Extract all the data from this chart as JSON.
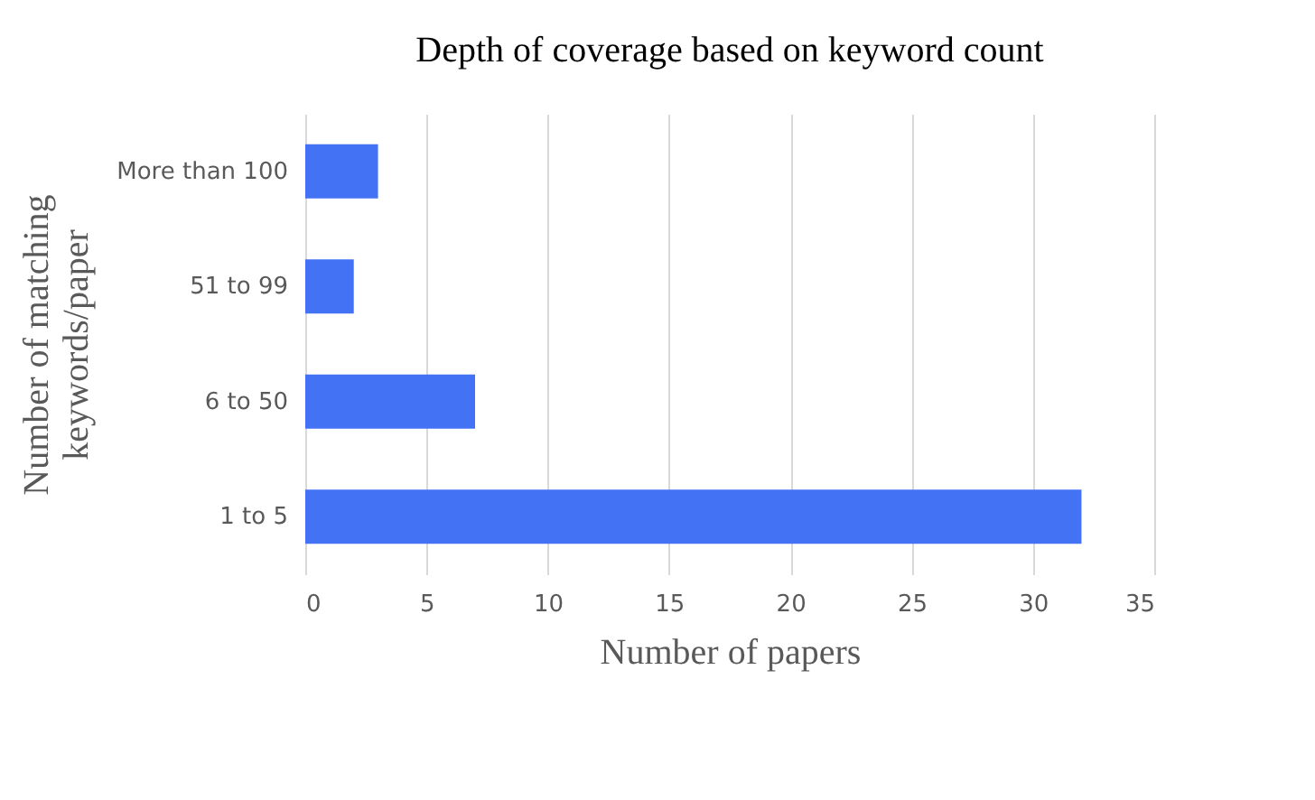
{
  "chart_data": {
    "type": "bar",
    "orientation": "horizontal",
    "title": "Depth of coverage based on keyword count",
    "xlabel": "Number of papers",
    "ylabel": "Number of matching keywords/paper",
    "categories": [
      "More than 100",
      "51 to 99",
      "6 to 50",
      "1 to 5"
    ],
    "values": [
      3,
      2,
      7,
      32
    ],
    "color": "#4472f4",
    "xlim": [
      0,
      35
    ],
    "xticks": [
      0,
      5,
      10,
      15,
      20,
      25,
      30,
      35
    ],
    "grid": "x"
  }
}
